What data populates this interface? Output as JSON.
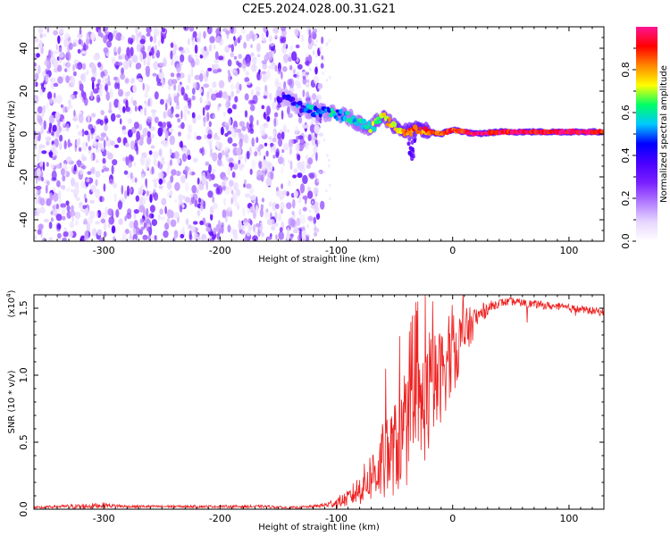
{
  "figure": {
    "title": "C2E5.2024.028.00.31.G21"
  },
  "colors": {
    "background": "#ffffff",
    "snr_line": "#ee2222",
    "axis": "#000000",
    "colormap": [
      "#ffffff",
      "#e6d6ff",
      "#b27bff",
      "#7a1fff",
      "#4a00ff",
      "#0000ff",
      "#00c8ff",
      "#00ff66",
      "#ffff00",
      "#ff8800",
      "#ff0000",
      "#ff1493"
    ]
  },
  "chart_data": [
    {
      "type": "heatmap",
      "title": "C2E5.2024.028.00.31.G21",
      "xlabel": "Height of straight line (km)",
      "ylabel": "Frequency (Hz)",
      "xlim": [
        -360,
        130
      ],
      "ylim": [
        -50,
        50
      ],
      "x_ticks": [
        -300,
        -200,
        -100,
        0,
        100
      ],
      "y_ticks": [
        -40,
        -20,
        0,
        20,
        40
      ],
      "x_tick_labels": [
        "-300",
        "-200",
        "-100",
        "0",
        "100"
      ],
      "y_tick_labels": [
        "-40",
        "-20",
        "0",
        "20",
        "40"
      ],
      "noise_region_x": [
        -360,
        -120
      ],
      "signal_track": {
        "x": [
          -150,
          -140,
          -130,
          -120,
          -110,
          -100,
          -90,
          -80,
          -70,
          -60,
          -50,
          -40,
          -30,
          -20,
          -10,
          0,
          20,
          40,
          60,
          80,
          100,
          130
        ],
        "frequency": [
          18,
          16,
          12,
          11,
          10,
          9,
          8,
          5,
          3,
          8,
          4,
          1,
          2,
          1,
          0,
          2,
          0,
          1,
          1,
          1,
          1,
          1
        ],
        "amplitude": [
          0.35,
          0.4,
          0.45,
          0.5,
          0.5,
          0.55,
          0.55,
          0.6,
          0.65,
          0.7,
          0.75,
          0.8,
          0.85,
          0.85,
          0.9,
          0.9,
          0.95,
          0.95,
          0.95,
          0.95,
          0.95,
          0.95
        ]
      },
      "colorbar": {
        "label": "Normalized spectral amplitude",
        "range": [
          0.0,
          1.0
        ],
        "ticks": [
          0.0,
          0.2,
          0.4,
          0.6,
          0.8
        ],
        "tick_labels": [
          "0.0",
          "0.2",
          "0.4",
          "0.6",
          "0.8"
        ]
      }
    },
    {
      "type": "line",
      "xlabel": "Height of straight line (km)",
      "ylabel": "SNR (10 * v/v)",
      "y_multiplier": "(x10",
      "y_multiplier_exp": "4",
      "xlim": [
        -360,
        130
      ],
      "ylim": [
        0,
        1.6
      ],
      "x_ticks": [
        -300,
        -200,
        -100,
        0,
        100
      ],
      "y_ticks": [
        0.0,
        0.5,
        1.0,
        1.5
      ],
      "x_tick_labels": [
        "-300",
        "-200",
        "-100",
        "0",
        "100"
      ],
      "y_tick_labels": [
        "0.0",
        "0.5",
        "1.0",
        "1.5"
      ],
      "series": [
        {
          "x": [
            -360,
            -340,
            -320,
            -300,
            -280,
            -260,
            -240,
            -220,
            -200,
            -180,
            -160,
            -140,
            -120,
            -110,
            -100,
            -90,
            -80,
            -70,
            -60,
            -50,
            -40,
            -30,
            -20,
            -10,
            0,
            10,
            20,
            30,
            40,
            50,
            60,
            70,
            80,
            90,
            100,
            110,
            120,
            130
          ],
          "y": [
            0.01,
            0.02,
            0.02,
            0.03,
            0.02,
            0.02,
            0.02,
            0.02,
            0.02,
            0.02,
            0.02,
            0.01,
            0.02,
            0.03,
            0.05,
            0.08,
            0.15,
            0.25,
            0.35,
            0.45,
            0.55,
            0.7,
            0.85,
            1.0,
            1.15,
            1.3,
            1.42,
            1.5,
            1.54,
            1.55,
            1.54,
            1.53,
            1.52,
            1.51,
            1.5,
            1.49,
            1.48,
            1.47
          ],
          "noise": [
            0.01,
            0.01,
            0.02,
            0.02,
            0.01,
            0.01,
            0.01,
            0.01,
            0.01,
            0.01,
            0.01,
            0.01,
            0.01,
            0.02,
            0.04,
            0.06,
            0.12,
            0.2,
            0.3,
            0.35,
            0.4,
            0.45,
            0.45,
            0.35,
            0.3,
            0.2,
            0.1,
            0.05,
            0.03,
            0.03,
            0.03,
            0.03,
            0.03,
            0.03,
            0.03,
            0.03,
            0.03,
            0.03
          ]
        }
      ]
    }
  ]
}
